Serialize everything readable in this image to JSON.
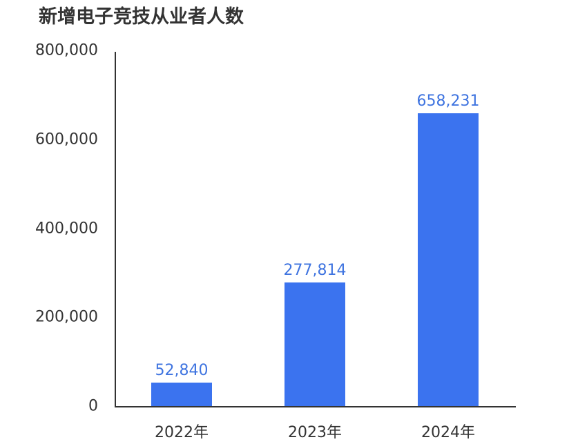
{
  "title": "新增电子竞技从业者人数",
  "y_ticks": [
    "800,000",
    "600,000",
    "400,000",
    "200,000",
    "0"
  ],
  "bars": [
    {
      "category": "2022年",
      "value": 52840,
      "label": "52,840"
    },
    {
      "category": "2023年",
      "value": 277814,
      "label": "277,814"
    },
    {
      "category": "2024年",
      "value": 658231,
      "label": "658,231"
    }
  ],
  "colors": {
    "bar": "#3b73ef",
    "value_label": "#3f74e0",
    "text": "#333333"
  },
  "chart_data": {
    "type": "bar",
    "title": "新增电子竞技从业者人数",
    "categories": [
      "2022年",
      "2023年",
      "2024年"
    ],
    "values": [
      52840,
      277814,
      658231
    ],
    "xlabel": "",
    "ylabel": "",
    "ylim": [
      0,
      800000
    ],
    "yticks": [
      0,
      200000,
      400000,
      600000,
      800000
    ],
    "grid": false,
    "data_labels": true
  }
}
